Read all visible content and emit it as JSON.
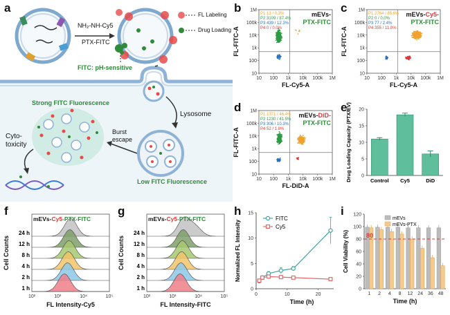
{
  "panel_labels": {
    "a": "a",
    "b": "b",
    "c": "c",
    "d": "d",
    "e": "e",
    "f": "f",
    "g": "g",
    "h": "h",
    "i": "i"
  },
  "panel_a": {
    "reagent_hydrazide": "NH₂-NH-Cy5",
    "reagent_ptx": "PTX-FITC",
    "legend_fl": "FL Labeling",
    "legend_drug": "Drug Loading",
    "fitc_note": "FITC: pH-sensitive",
    "strong": "Strong FITC Fluorescence",
    "lysosome": "Lysosome",
    "burst1": "Burst",
    "burst2": "escape",
    "cyto1": "Cyto-",
    "cyto2": "toxicity",
    "low": "Low FITC Fluorescence",
    "colors": {
      "green": "#2e8b3a",
      "red": "#e84a4a",
      "membrane": "#8fb3d6",
      "bg": "#eef5f8"
    }
  },
  "chart_data": [
    {
      "id": "b",
      "type": "scatter",
      "title_line1": "mEVs-",
      "title_line2": "PTX-FITC",
      "xlabel": "FL-Cy5-A",
      "ylabel": "FL-FITC-A",
      "xticks": [
        "10",
        "100",
        "1k",
        "10k",
        "100k",
        "1M"
      ],
      "yticks": [
        "1M",
        "100k",
        "10k",
        "1k",
        "100",
        "10"
      ],
      "gates": [
        {
          "label": "P1",
          "count": "13",
          "pct": "0.3%",
          "color": "#f0a22e"
        },
        {
          "label": "P2",
          "count": "3109",
          "pct": "87.4%",
          "color": "#2e9a45"
        },
        {
          "label": "P3",
          "count": "439",
          "pct": "12.3%",
          "color": "#2a72b8"
        },
        {
          "label": "P4",
          "count": "0",
          "pct": "0.0%",
          "color": "#d83a3a"
        }
      ]
    },
    {
      "id": "c",
      "type": "scatter",
      "title_a": "mEVs-",
      "title_b": "Cy5-",
      "title_line2": "PTX-FITC",
      "xlabel": "FL-Cy5-A",
      "ylabel": "FL-FITC-A",
      "xticks": [
        "10",
        "100",
        "1k",
        "10k",
        "100k",
        "1M"
      ],
      "yticks": [
        "1M",
        "100k",
        "10k",
        "1k",
        "100",
        "10"
      ],
      "gates": [
        {
          "label": "P1",
          "count": "2784",
          "pct": "85.6%",
          "color": "#f0a22e"
        },
        {
          "label": "P2",
          "count": "0",
          "pct": "0.0%",
          "color": "#2e9a45"
        },
        {
          "label": "P3",
          "count": "77",
          "pct": "2.4%",
          "color": "#2a72b8"
        },
        {
          "label": "P4",
          "count": "355",
          "pct": "11.0%",
          "color": "#d83a3a"
        }
      ]
    },
    {
      "id": "d",
      "type": "scatter",
      "title_a": "mEVs-",
      "title_b": "DiD-",
      "title_line2": "PTX-FITC",
      "xlabel": "FL-DiD-A",
      "ylabel": "FL-FITC-A",
      "xticks": [
        "10",
        "100",
        "1k",
        "10k",
        "100k",
        "1M"
      ],
      "yticks": [
        "1M",
        "100k",
        "10k",
        "1k",
        "100",
        "10"
      ],
      "gates": [
        {
          "label": "P1",
          "count": "1371",
          "pct": "46.4%",
          "color": "#f0a22e"
        },
        {
          "label": "P2",
          "count": "1230",
          "pct": "41.5%",
          "color": "#2e9a45"
        },
        {
          "label": "P3",
          "count": "306",
          "pct": "10.3%",
          "color": "#2a72b8"
        },
        {
          "label": "P4",
          "count": "52",
          "pct": "1.8%",
          "color": "#d83a3a"
        }
      ]
    },
    {
      "id": "e",
      "type": "bar",
      "categories": [
        "Control",
        "Cy5",
        "DiD"
      ],
      "values": [
        11.0,
        18.3,
        6.5
      ],
      "errors": [
        0.4,
        0.5,
        0.9
      ],
      "ylabel": "Drug Loading Capacity (PTX/EV)",
      "ylim": [
        0,
        20
      ],
      "yticks": [
        "0",
        "5",
        "10",
        "15",
        "20"
      ],
      "color": "#5fbe9b"
    },
    {
      "id": "f",
      "type": "histogram",
      "title_a": "mEVs-",
      "title_b": "Cy5",
      "title_c": "-PTX-FITC",
      "series": [
        "24 h",
        "12 h",
        "8 h",
        "4 h",
        "2 h",
        "1 h"
      ],
      "ylabel": "Cell Counts",
      "xlabel": "FL Intensity-Cy5",
      "xticks": [
        "10²",
        "10³",
        "10⁴",
        "10⁵"
      ]
    },
    {
      "id": "g",
      "type": "histogram",
      "title_a": "mEVs-",
      "title_b": "Cy5",
      "title_c": "-PTX-FITC",
      "series": [
        "24 h",
        "12 h",
        "8 h",
        "4 h",
        "2 h",
        "1 h"
      ],
      "ylabel": "Cell Counts",
      "xlabel": "FL Intensity-FITC",
      "xticks": [
        "10²",
        "10³",
        "10⁴",
        "10⁵"
      ]
    },
    {
      "id": "h",
      "type": "line",
      "x": [
        1,
        2,
        4,
        8,
        12,
        24
      ],
      "series": [
        {
          "name": "FITC",
          "values": [
            1.5,
            2.2,
            3.0,
            3.6,
            4.0,
            11.5
          ],
          "errors": [
            0.2,
            0.3,
            0.4,
            0.6,
            0.4,
            2.6
          ],
          "color": "#3aa7a0"
        },
        {
          "name": "Cy5",
          "values": [
            1.6,
            2.2,
            2.4,
            2.3,
            2.2,
            1.9
          ],
          "errors": [
            0.2,
            0.3,
            0.3,
            0.3,
            0.2,
            0.2
          ],
          "color": "#e06a6a"
        }
      ],
      "xlabel": "Time (h)",
      "ylabel": "Normalized FL Intensity",
      "xlim": [
        0,
        25
      ],
      "ylim": [
        0,
        15
      ],
      "xticks": [
        "0",
        "10",
        "20"
      ],
      "yticks": [
        "0",
        "5",
        "10",
        "15"
      ]
    },
    {
      "id": "i",
      "type": "bar",
      "categories": [
        "1",
        "2",
        "4",
        "8",
        "12",
        "24",
        "36",
        "48"
      ],
      "series": [
        {
          "name": "mEVs",
          "values": [
            99,
            99,
            99,
            99,
            98,
            98,
            98,
            98
          ],
          "color": "#bcbcbc"
        },
        {
          "name": "mEVs-PTX",
          "values": [
            98,
            95,
            92,
            88,
            80,
            65,
            50,
            37
          ],
          "color": "#f6c98c"
        }
      ],
      "ref_line": 80,
      "ref_label": "80",
      "xlabel": "Time (h)",
      "ylabel": "Cell Viability (%)",
      "ylim": [
        0,
        120
      ],
      "yticks": [
        "0",
        "20",
        "40",
        "60",
        "80",
        "100",
        "120"
      ]
    }
  ]
}
